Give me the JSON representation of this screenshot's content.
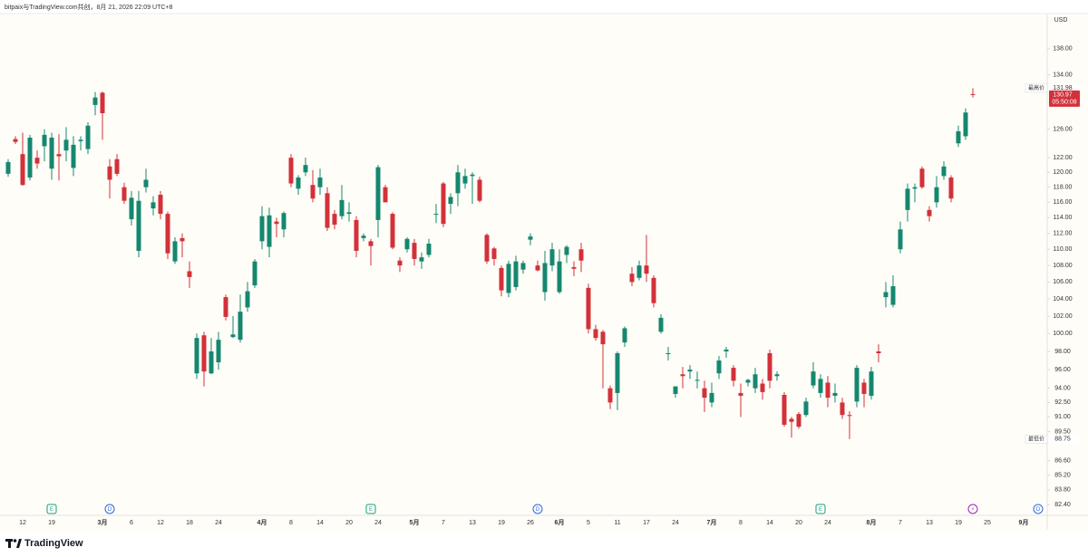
{
  "header": {
    "text": "bitpaix与TradingView.com共创，8月 21, 2026 22:09 UTC+8"
  },
  "chart_data": {
    "type": "candlestick",
    "currency": "USD",
    "log_scale": true,
    "grid": false,
    "up_color": "#15876f",
    "down_color": "#d2313a",
    "ylim": [
      81.5,
      143.6
    ],
    "yticks": [
      {
        "value": 82.4,
        "label": "82.40"
      },
      {
        "value": 83.8,
        "label": "83.80"
      },
      {
        "value": 85.2,
        "label": "85.20"
      },
      {
        "value": 86.6,
        "label": "86.60"
      },
      {
        "value": 89.5,
        "label": "89.50"
      },
      {
        "value": 91,
        "label": "91.00"
      },
      {
        "value": 92.5,
        "label": "92.50"
      },
      {
        "value": 94,
        "label": "94.00"
      },
      {
        "value": 96,
        "label": "96.00"
      },
      {
        "value": 98,
        "label": "98.00"
      },
      {
        "value": 100,
        "label": "100.00"
      },
      {
        "value": 102,
        "label": "102.00"
      },
      {
        "value": 104,
        "label": "104.00"
      },
      {
        "value": 106,
        "label": "106.00"
      },
      {
        "value": 108,
        "label": "108.00"
      },
      {
        "value": 110,
        "label": "110.00"
      },
      {
        "value": 112,
        "label": "112.00"
      },
      {
        "value": 114,
        "label": "114.00"
      },
      {
        "value": 116,
        "label": "116.00"
      },
      {
        "value": 118,
        "label": "118.00"
      },
      {
        "value": 120,
        "label": "120.00"
      },
      {
        "value": 122,
        "label": "122.00"
      },
      {
        "value": 126,
        "label": "126.00"
      },
      {
        "value": 134,
        "label": "134.00"
      },
      {
        "value": 138,
        "label": "138.00"
      }
    ],
    "categories": [
      null,
      null,
      "12",
      null,
      null,
      null,
      "19",
      null,
      null,
      null,
      null,
      null,
      null,
      "3月",
      null,
      null,
      null,
      "6",
      null,
      null,
      null,
      "12",
      null,
      null,
      null,
      "18",
      null,
      null,
      null,
      "24",
      null,
      null,
      null,
      null,
      null,
      "4月",
      null,
      null,
      null,
      "8",
      null,
      null,
      null,
      "14",
      null,
      null,
      null,
      "20",
      null,
      null,
      null,
      "24",
      null,
      null,
      null,
      null,
      "5月",
      null,
      null,
      null,
      "7",
      null,
      null,
      null,
      "13",
      null,
      null,
      null,
      "19",
      null,
      null,
      null,
      "26",
      null,
      null,
      null,
      "6月",
      null,
      null,
      null,
      "5",
      null,
      null,
      null,
      "11",
      null,
      null,
      null,
      "17",
      null,
      null,
      null,
      "24",
      null,
      null,
      null,
      null,
      "7月",
      null,
      null,
      null,
      "8",
      null,
      null,
      null,
      "14",
      null,
      null,
      null,
      "20",
      null,
      null,
      null,
      "24",
      null,
      null,
      null,
      null,
      null,
      "8月",
      null,
      null,
      null,
      "7",
      null,
      null,
      null,
      "13",
      null,
      null,
      null,
      "19",
      null,
      null,
      null,
      "25",
      null,
      null,
      null,
      null,
      "9月",
      null,
      null
    ],
    "open": [
      119.8,
      124.6,
      122.5,
      119.3,
      122.0,
      123.6,
      120.5,
      122.5,
      123.0,
      120.6,
      124.3,
      123.2,
      129.5,
      131.3,
      120.8,
      121.8,
      118.0,
      113.8,
      109.8,
      118.0,
      115.2,
      117.0,
      114.5,
      108.5,
      111.4,
      107.3,
      95.6,
      99.8,
      95.6,
      96.8,
      104.2,
      99.6,
      99.3,
      103.0,
      105.6,
      111.0,
      110.3,
      113.5,
      112.5,
      122.0,
      117.8,
      120.0,
      118.3,
      118.0,
      117.2,
      114.5,
      114.2,
      114.5,
      113.7,
      111.4,
      111.0,
      113.7,
      118.0,
      114.5,
      108.6,
      110.0,
      110.8,
      108.5,
      109.3,
      114.4,
      118.5,
      115.8,
      117.2,
      118.5,
      119.5,
      119.0,
      111.8,
      110.1,
      107.7,
      104.7,
      105.4,
      107.5,
      111.2,
      108.0,
      104.8,
      108.0,
      104.8,
      109.3,
      107.8,
      110.0,
      105.3,
      100.5,
      100.2,
      94.0,
      93.5,
      99.0,
      107.0,
      106.5,
      108.0,
      106.5,
      100.2,
      97.7,
      93.4,
      95.5,
      95.8,
      94.8,
      94.0,
      92.5,
      95.6,
      98.0,
      96.2,
      93.5,
      94.6,
      94.0,
      94.5,
      97.8,
      95.3,
      93.3,
      90.8,
      91.3,
      91.2,
      94.3,
      93.5,
      94.6,
      93.2,
      92.5,
      91.2,
      92.6,
      94.6,
      93.2,
      98.0,
      104.2,
      103.3,
      110.0,
      115.0,
      117.8,
      120.5,
      115.0,
      116.0,
      119.5,
      119.3,
      124.0,
      125.0,
      131.1,
      null,
      null,
      null,
      null,
      null,
      null,
      null,
      null,
      null
    ],
    "high": [
      121.8,
      125.0,
      125.5,
      125.2,
      123.0,
      126.0,
      125.5,
      125.3,
      126.3,
      125.0,
      125.0,
      127.0,
      131.4,
      131.5,
      121.8,
      122.5,
      118.6,
      117.5,
      117.5,
      120.5,
      116.8,
      117.5,
      114.8,
      111.5,
      112.0,
      108.5,
      100.0,
      100.2,
      99.5,
      100.2,
      104.5,
      102.0,
      104.5,
      106.0,
      108.8,
      115.5,
      115.3,
      114.0,
      114.8,
      122.5,
      119.6,
      122.0,
      120.3,
      120.5,
      118.0,
      115.0,
      118.3,
      116.0,
      114.2,
      112.0,
      111.3,
      121.0,
      118.3,
      114.7,
      109.0,
      111.5,
      111.3,
      109.6,
      111.3,
      115.8,
      118.7,
      117.2,
      121.0,
      120.5,
      120.0,
      119.4,
      112.0,
      110.3,
      108.0,
      108.6,
      109.2,
      108.6,
      112.0,
      108.6,
      109.8,
      110.8,
      110.0,
      110.5,
      108.5,
      110.8,
      105.8,
      101.0,
      100.4,
      94.3,
      98.0,
      100.8,
      107.8,
      108.6,
      111.8,
      106.8,
      102.2,
      98.5,
      94.2,
      96.3,
      96.5,
      95.8,
      94.8,
      94.6,
      97.5,
      98.5,
      96.5,
      94.5,
      95.0,
      96.2,
      95.0,
      98.2,
      95.8,
      93.6,
      91.0,
      91.5,
      93.0,
      96.8,
      95.5,
      95.3,
      94.5,
      93.0,
      91.6,
      96.5,
      95.0,
      96.3,
      98.8,
      106.0,
      106.8,
      113.5,
      118.5,
      118.5,
      120.8,
      115.5,
      119.5,
      121.5,
      119.6,
      126.5,
      129.0,
      131.98,
      null,
      null,
      null,
      null,
      null,
      null,
      null,
      null,
      null
    ],
    "low": [
      119.4,
      123.9,
      118.2,
      118.9,
      120.5,
      121.5,
      119.0,
      118.9,
      121.5,
      119.5,
      123.0,
      122.5,
      128.0,
      124.5,
      116.5,
      119.5,
      115.8,
      113.0,
      109.0,
      117.3,
      114.3,
      113.8,
      108.8,
      108.2,
      109.0,
      105.3,
      95.0,
      94.2,
      95.5,
      96.0,
      101.5,
      99.5,
      99.0,
      102.5,
      105.3,
      110.0,
      109.0,
      111.5,
      111.5,
      118.0,
      117.0,
      119.5,
      116.0,
      117.0,
      112.3,
      112.5,
      113.8,
      113.5,
      109.0,
      111.0,
      108.0,
      111.5,
      116.0,
      110.0,
      107.2,
      109.6,
      108.0,
      107.6,
      109.0,
      113.3,
      112.8,
      114.5,
      115.5,
      117.8,
      115.8,
      116.0,
      108.2,
      108.0,
      104.3,
      104.2,
      105.0,
      107.0,
      110.5,
      107.3,
      103.8,
      107.3,
      104.6,
      108.3,
      106.7,
      107.2,
      100.0,
      99.2,
      94.0,
      91.8,
      91.7,
      98.5,
      105.5,
      106.2,
      106.0,
      103.0,
      100.0,
      97.0,
      93.0,
      94.0,
      95.0,
      94.0,
      91.5,
      92.0,
      95.0,
      97.3,
      94.2,
      91.0,
      94.2,
      93.5,
      92.8,
      94.0,
      94.8,
      90.0,
      88.9,
      89.8,
      91.0,
      94.0,
      93.0,
      92.0,
      92.5,
      90.8,
      88.75,
      92.0,
      92.0,
      92.8,
      96.8,
      103.0,
      103.0,
      109.5,
      113.5,
      116.0,
      117.8,
      113.5,
      115.3,
      119.0,
      116.0,
      123.5,
      124.5,
      130.6,
      null,
      null,
      null,
      null,
      null,
      null,
      null,
      null,
      null
    ],
    "close": [
      121.4,
      124.2,
      118.3,
      124.8,
      121.2,
      125.2,
      124.8,
      122.2,
      124.5,
      123.8,
      124.5,
      126.5,
      130.6,
      128.3,
      119.0,
      119.8,
      116.2,
      116.6,
      116.2,
      119.0,
      116.0,
      114.5,
      109.5,
      111.0,
      111.0,
      106.6,
      99.5,
      95.8,
      98.0,
      99.3,
      101.9,
      99.9,
      102.5,
      104.9,
      108.5,
      114.2,
      114.3,
      113.2,
      114.6,
      118.5,
      119.3,
      121.0,
      116.5,
      119.3,
      112.7,
      113.1,
      116.3,
      114.7,
      109.8,
      111.7,
      110.4,
      120.7,
      116.0,
      110.2,
      108.0,
      111.3,
      108.8,
      109.0,
      110.7,
      114.5,
      113.2,
      116.7,
      120.0,
      119.5,
      119.7,
      116.2,
      108.5,
      108.8,
      105.0,
      108.2,
      108.5,
      108.3,
      111.6,
      107.4,
      108.3,
      110.0,
      108.5,
      110.3,
      107.6,
      108.6,
      100.5,
      99.5,
      98.8,
      92.5,
      97.8,
      100.6,
      106.0,
      108.0,
      107.0,
      103.5,
      101.8,
      97.8,
      94.2,
      95.3,
      96.0,
      94.9,
      93.0,
      93.5,
      97.0,
      98.2,
      94.8,
      93.2,
      94.9,
      95.5,
      93.6,
      94.8,
      95.5,
      90.2,
      90.5,
      90.0,
      92.6,
      95.8,
      95.0,
      93.0,
      93.5,
      91.2,
      91.1,
      96.2,
      93.4,
      95.8,
      97.8,
      104.8,
      105.5,
      112.5,
      117.8,
      118.0,
      118.0,
      114.2,
      118.0,
      120.8,
      116.5,
      125.7,
      128.4,
      130.97,
      null,
      null,
      null,
      null,
      null,
      null,
      null,
      null,
      null
    ],
    "events": [
      null,
      null,
      null,
      null,
      null,
      null,
      "E",
      null,
      null,
      null,
      null,
      null,
      null,
      null,
      "D",
      null,
      null,
      null,
      null,
      null,
      null,
      null,
      null,
      null,
      null,
      null,
      null,
      null,
      null,
      null,
      null,
      null,
      null,
      null,
      null,
      null,
      null,
      null,
      null,
      null,
      null,
      null,
      null,
      null,
      null,
      null,
      null,
      null,
      null,
      null,
      "E",
      null,
      null,
      null,
      null,
      null,
      null,
      null,
      null,
      null,
      null,
      null,
      null,
      null,
      null,
      null,
      null,
      null,
      null,
      null,
      null,
      null,
      null,
      "D",
      null,
      null,
      null,
      null,
      null,
      null,
      null,
      null,
      null,
      null,
      null,
      null,
      null,
      null,
      null,
      null,
      null,
      null,
      null,
      null,
      null,
      null,
      null,
      null,
      null,
      null,
      null,
      null,
      null,
      null,
      null,
      null,
      null,
      null,
      null,
      null,
      null,
      null,
      "E",
      null,
      null,
      null,
      null,
      null,
      null,
      null,
      null,
      null,
      null,
      null,
      null,
      null,
      null,
      null,
      null,
      null,
      null,
      null,
      null,
      "⚡",
      null,
      null,
      null,
      null,
      null,
      null,
      null,
      null,
      "D"
    ],
    "high_marker": {
      "label": "最高价",
      "value": 131.98
    },
    "low_marker": {
      "label": "最低价",
      "value": 88.75
    },
    "last_price": {
      "value": 130.97,
      "countdown": "05:50:08"
    }
  },
  "footer": {
    "logo": "TradingView"
  }
}
